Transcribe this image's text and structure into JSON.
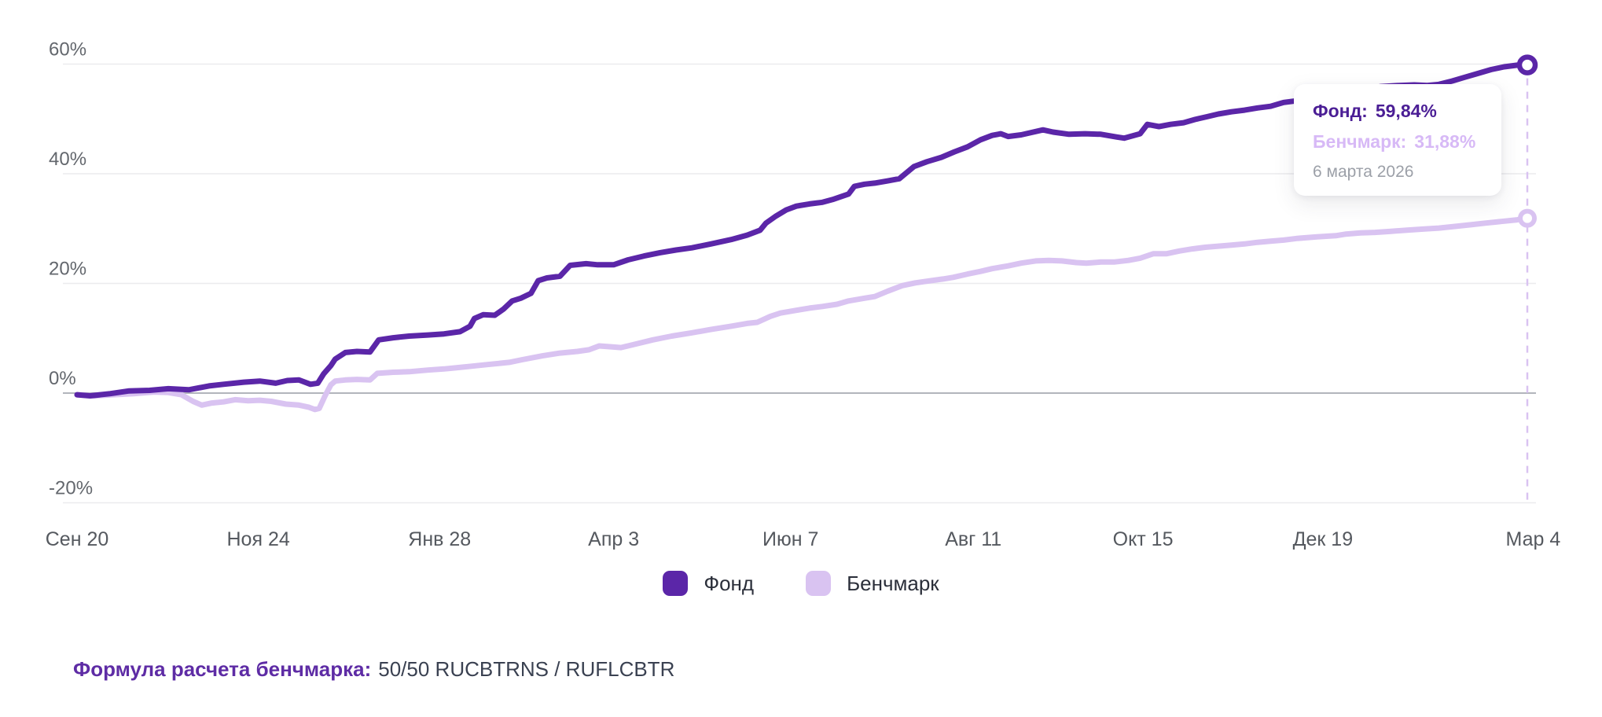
{
  "colors": {
    "fund": "#5b26a8",
    "benchmark": "#d9c3f1",
    "tooltip_fund_text": "#4b1e95",
    "tooltip_benchmark_text": "#d7b9f6",
    "tooltip_date_text": "#9ca0a8",
    "grid_line": "#ebebee",
    "zero_line": "#b2b5bc",
    "y_tick_text": "#63676d",
    "x_tick_text": "#55595f",
    "formula_label": "#5e2ca5",
    "formula_value": "#3a4151"
  },
  "tooltip": {
    "fund_label": "Фонд:",
    "fund_value": "59,84%",
    "benchmark_label": "Бенчмарк:",
    "benchmark_value": "31,88%",
    "date": "6 марта 2026"
  },
  "legend": [
    {
      "key": "fund",
      "label": "Фонд"
    },
    {
      "key": "benchmark",
      "label": "Бенчмарк"
    }
  ],
  "footer": {
    "formula_label": "Формула расчета бенчмарка:",
    "formula_value": "50/50 RUCBTRNS / RUFLCBTR"
  },
  "chart_data": {
    "type": "line",
    "title": "",
    "xlabel": "",
    "ylabel": "",
    "y_unit": "%",
    "ylim": [
      -20,
      60
    ],
    "grid": "horizontal",
    "legend_position": "bottom-center",
    "y_ticks": [
      {
        "label": "60%",
        "value": 60
      },
      {
        "label": "40%",
        "value": 40
      },
      {
        "label": "20%",
        "value": 20
      },
      {
        "label": "0%",
        "value": 0
      },
      {
        "label": "-20%",
        "value": -20
      }
    ],
    "x_ticks": [
      {
        "label": "Сен 20",
        "t": 0.0
      },
      {
        "label": "Ноя 24",
        "t": 0.125
      },
      {
        "label": "Янв 28",
        "t": 0.25
      },
      {
        "label": "Апр 3",
        "t": 0.37
      },
      {
        "label": "Июн 7",
        "t": 0.492
      },
      {
        "label": "Авг 11",
        "t": 0.618
      },
      {
        "label": "Окт 15",
        "t": 0.735
      },
      {
        "label": "Дек 19",
        "t": 0.859
      },
      {
        "label": "Мар 4",
        "t": 1.004
      }
    ],
    "cursor": {
      "t": 1.0,
      "date": "6 марта 2026"
    },
    "series": [
      {
        "name": "Фонд",
        "color": "#5b26a8",
        "end_value": 59.84,
        "end_value_label": "59,84%",
        "points": [
          [
            0.0,
            -0.3
          ],
          [
            0.009,
            -0.5
          ],
          [
            0.023,
            -0.1
          ],
          [
            0.036,
            0.4
          ],
          [
            0.05,
            0.5
          ],
          [
            0.063,
            0.8
          ],
          [
            0.077,
            0.6
          ],
          [
            0.091,
            1.3
          ],
          [
            0.101,
            1.6
          ],
          [
            0.115,
            2.0
          ],
          [
            0.126,
            2.2
          ],
          [
            0.137,
            1.8
          ],
          [
            0.145,
            2.3
          ],
          [
            0.153,
            2.4
          ],
          [
            0.161,
            1.6
          ],
          [
            0.166,
            1.8
          ],
          [
            0.17,
            3.5
          ],
          [
            0.175,
            5.0
          ],
          [
            0.178,
            6.2
          ],
          [
            0.185,
            7.4
          ],
          [
            0.193,
            7.6
          ],
          [
            0.202,
            7.5
          ],
          [
            0.208,
            9.7
          ],
          [
            0.218,
            10.1
          ],
          [
            0.229,
            10.4
          ],
          [
            0.242,
            10.6
          ],
          [
            0.253,
            10.8
          ],
          [
            0.264,
            11.2
          ],
          [
            0.271,
            12.2
          ],
          [
            0.274,
            13.6
          ],
          [
            0.28,
            14.3
          ],
          [
            0.288,
            14.2
          ],
          [
            0.294,
            15.3
          ],
          [
            0.3,
            16.8
          ],
          [
            0.306,
            17.3
          ],
          [
            0.313,
            18.2
          ],
          [
            0.318,
            20.5
          ],
          [
            0.324,
            21.0
          ],
          [
            0.333,
            21.3
          ],
          [
            0.34,
            23.3
          ],
          [
            0.351,
            23.6
          ],
          [
            0.359,
            23.4
          ],
          [
            0.37,
            23.4
          ],
          [
            0.38,
            24.3
          ],
          [
            0.391,
            25.0
          ],
          [
            0.402,
            25.6
          ],
          [
            0.413,
            26.1
          ],
          [
            0.424,
            26.5
          ],
          [
            0.437,
            27.2
          ],
          [
            0.451,
            28.0
          ],
          [
            0.462,
            28.8
          ],
          [
            0.471,
            29.7
          ],
          [
            0.475,
            31.0
          ],
          [
            0.482,
            32.3
          ],
          [
            0.489,
            33.4
          ],
          [
            0.496,
            34.1
          ],
          [
            0.505,
            34.5
          ],
          [
            0.514,
            34.8
          ],
          [
            0.521,
            35.3
          ],
          [
            0.532,
            36.3
          ],
          [
            0.536,
            37.7
          ],
          [
            0.543,
            38.1
          ],
          [
            0.55,
            38.3
          ],
          [
            0.559,
            38.7
          ],
          [
            0.567,
            39.1
          ],
          [
            0.577,
            41.3
          ],
          [
            0.586,
            42.2
          ],
          [
            0.596,
            43.0
          ],
          [
            0.605,
            44.0
          ],
          [
            0.614,
            44.9
          ],
          [
            0.623,
            46.2
          ],
          [
            0.631,
            47.0
          ],
          [
            0.637,
            47.3
          ],
          [
            0.642,
            46.8
          ],
          [
            0.651,
            47.1
          ],
          [
            0.666,
            48.0
          ],
          [
            0.673,
            47.6
          ],
          [
            0.684,
            47.2
          ],
          [
            0.695,
            47.3
          ],
          [
            0.706,
            47.2
          ],
          [
            0.717,
            46.7
          ],
          [
            0.722,
            46.5
          ],
          [
            0.733,
            47.3
          ],
          [
            0.738,
            49.0
          ],
          [
            0.746,
            48.6
          ],
          [
            0.754,
            49.0
          ],
          [
            0.763,
            49.3
          ],
          [
            0.771,
            49.9
          ],
          [
            0.779,
            50.4
          ],
          [
            0.787,
            50.9
          ],
          [
            0.796,
            51.3
          ],
          [
            0.805,
            51.6
          ],
          [
            0.814,
            52.0
          ],
          [
            0.823,
            52.3
          ],
          [
            0.832,
            53.0
          ],
          [
            0.841,
            53.3
          ],
          [
            0.852,
            53.8
          ],
          [
            0.863,
            54.3
          ],
          [
            0.874,
            54.8
          ],
          [
            0.885,
            55.3
          ],
          [
            0.899,
            55.9
          ],
          [
            0.912,
            56.1
          ],
          [
            0.922,
            56.2
          ],
          [
            0.931,
            56.1
          ],
          [
            0.939,
            56.3
          ],
          [
            0.948,
            56.9
          ],
          [
            0.957,
            57.6
          ],
          [
            0.966,
            58.3
          ],
          [
            0.975,
            59.0
          ],
          [
            0.984,
            59.5
          ],
          [
            0.993,
            59.8
          ],
          [
            1.0,
            59.84
          ]
        ]
      },
      {
        "name": "Бенчмарк",
        "color": "#d9c3f1",
        "end_value": 31.88,
        "end_value_label": "31,88%",
        "points": [
          [
            0.0,
            -0.3
          ],
          [
            0.012,
            -0.5
          ],
          [
            0.025,
            -0.3
          ],
          [
            0.039,
            -0.1
          ],
          [
            0.053,
            0.2
          ],
          [
            0.063,
            0.1
          ],
          [
            0.072,
            -0.3
          ],
          [
            0.08,
            -1.5
          ],
          [
            0.086,
            -2.2
          ],
          [
            0.093,
            -1.8
          ],
          [
            0.101,
            -1.6
          ],
          [
            0.109,
            -1.2
          ],
          [
            0.118,
            -1.4
          ],
          [
            0.126,
            -1.3
          ],
          [
            0.134,
            -1.5
          ],
          [
            0.144,
            -2.0
          ],
          [
            0.153,
            -2.2
          ],
          [
            0.16,
            -2.6
          ],
          [
            0.164,
            -3.0
          ],
          [
            0.167,
            -2.8
          ],
          [
            0.171,
            -0.5
          ],
          [
            0.175,
            1.5
          ],
          [
            0.178,
            2.2
          ],
          [
            0.185,
            2.4
          ],
          [
            0.193,
            2.5
          ],
          [
            0.202,
            2.4
          ],
          [
            0.207,
            3.6
          ],
          [
            0.218,
            3.8
          ],
          [
            0.229,
            3.9
          ],
          [
            0.242,
            4.2
          ],
          [
            0.253,
            4.4
          ],
          [
            0.261,
            4.6
          ],
          [
            0.272,
            4.9
          ],
          [
            0.283,
            5.2
          ],
          [
            0.298,
            5.6
          ],
          [
            0.307,
            6.1
          ],
          [
            0.321,
            6.8
          ],
          [
            0.333,
            7.3
          ],
          [
            0.345,
            7.6
          ],
          [
            0.353,
            7.9
          ],
          [
            0.36,
            8.6
          ],
          [
            0.37,
            8.4
          ],
          [
            0.375,
            8.3
          ],
          [
            0.383,
            8.8
          ],
          [
            0.397,
            9.7
          ],
          [
            0.41,
            10.4
          ],
          [
            0.424,
            11.0
          ],
          [
            0.437,
            11.6
          ],
          [
            0.451,
            12.2
          ],
          [
            0.462,
            12.7
          ],
          [
            0.469,
            12.9
          ],
          [
            0.478,
            14.0
          ],
          [
            0.485,
            14.6
          ],
          [
            0.496,
            15.1
          ],
          [
            0.505,
            15.5
          ],
          [
            0.514,
            15.8
          ],
          [
            0.524,
            16.2
          ],
          [
            0.532,
            16.8
          ],
          [
            0.543,
            17.3
          ],
          [
            0.55,
            17.6
          ],
          [
            0.559,
            18.6
          ],
          [
            0.569,
            19.6
          ],
          [
            0.578,
            20.1
          ],
          [
            0.586,
            20.4
          ],
          [
            0.597,
            20.8
          ],
          [
            0.604,
            21.1
          ],
          [
            0.614,
            21.7
          ],
          [
            0.623,
            22.2
          ],
          [
            0.631,
            22.7
          ],
          [
            0.642,
            23.2
          ],
          [
            0.651,
            23.7
          ],
          [
            0.661,
            24.1
          ],
          [
            0.67,
            24.2
          ],
          [
            0.679,
            24.1
          ],
          [
            0.689,
            23.8
          ],
          [
            0.696,
            23.7
          ],
          [
            0.706,
            23.9
          ],
          [
            0.715,
            23.9
          ],
          [
            0.725,
            24.2
          ],
          [
            0.733,
            24.6
          ],
          [
            0.742,
            25.4
          ],
          [
            0.751,
            25.4
          ],
          [
            0.76,
            25.9
          ],
          [
            0.769,
            26.3
          ],
          [
            0.778,
            26.6
          ],
          [
            0.787,
            26.8
          ],
          [
            0.796,
            27.0
          ],
          [
            0.805,
            27.2
          ],
          [
            0.814,
            27.5
          ],
          [
            0.823,
            27.7
          ],
          [
            0.832,
            27.9
          ],
          [
            0.841,
            28.2
          ],
          [
            0.855,
            28.5
          ],
          [
            0.868,
            28.7
          ],
          [
            0.875,
            29.0
          ],
          [
            0.885,
            29.2
          ],
          [
            0.895,
            29.3
          ],
          [
            0.906,
            29.5
          ],
          [
            0.917,
            29.7
          ],
          [
            0.928,
            29.9
          ],
          [
            0.939,
            30.1
          ],
          [
            0.95,
            30.4
          ],
          [
            0.961,
            30.7
          ],
          [
            0.971,
            31.0
          ],
          [
            0.982,
            31.3
          ],
          [
            0.993,
            31.6
          ],
          [
            1.0,
            31.88
          ]
        ]
      }
    ]
  }
}
